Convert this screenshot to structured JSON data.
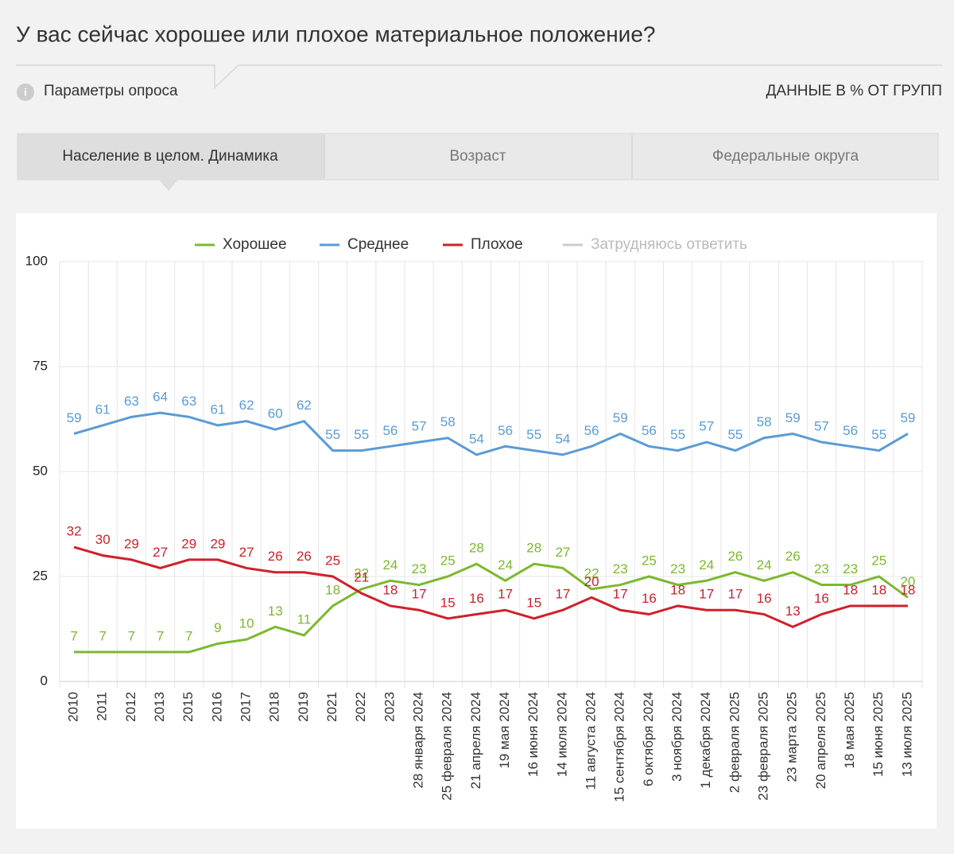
{
  "page": {
    "params": "Параметры опроса",
    "units_note": "ДАННЫЕ В % ОТ ГРУПП",
    "tabs": [
      "Население в целом. Динамика",
      "Возраст",
      "Федеральные округа"
    ]
  },
  "chart_data": {
    "type": "line",
    "title": "У вас сейчас хорошее или плохое материальное положение?",
    "categories": [
      "2010",
      "2011",
      "2012",
      "2013",
      "2015",
      "2016",
      "2017",
      "2018",
      "2019",
      "2021",
      "2022",
      "2023",
      "28 января 2024",
      "25 февраля 2024",
      "21 апреля 2024",
      "19 мая 2024",
      "16 июня 2024",
      "14 июля 2024",
      "11 августа 2024",
      "15 сентября 2024",
      "6 октября 2024",
      "3 ноября 2024",
      "1 декабря 2024",
      "2 февраля 2025",
      "23 февраля 2025",
      "23 марта 2025",
      "20 апреля 2025",
      "18 мая 2025",
      "15 июня 2025",
      "13 июля 2025"
    ],
    "series": [
      {
        "name": "Хорошее",
        "color": "#7cb82f",
        "values": [
          7,
          7,
          7,
          7,
          7,
          9,
          10,
          13,
          11,
          18,
          22,
          24,
          23,
          25,
          28,
          24,
          28,
          27,
          22,
          23,
          25,
          23,
          24,
          26,
          24,
          26,
          23,
          23,
          25,
          20
        ]
      },
      {
        "name": "Среднее",
        "color": "#5b9bd5",
        "values": [
          59,
          61,
          63,
          64,
          63,
          61,
          62,
          60,
          62,
          55,
          55,
          56,
          57,
          58,
          54,
          56,
          55,
          54,
          56,
          59,
          56,
          55,
          57,
          55,
          58,
          59,
          57,
          56,
          55,
          59
        ]
      },
      {
        "name": "Плохое",
        "color": "#d0202a",
        "values": [
          32,
          30,
          29,
          27,
          29,
          29,
          27,
          26,
          26,
          25,
          21,
          18,
          17,
          15,
          16,
          17,
          15,
          17,
          20,
          17,
          16,
          18,
          17,
          17,
          16,
          13,
          16,
          18,
          18,
          18
        ]
      },
      {
        "name": "Затрудняюсь ответить",
        "color": "#cccccc",
        "hidden": true,
        "values": [
          null,
          null,
          null,
          null,
          null,
          null,
          null,
          null,
          null,
          null,
          null,
          null,
          null,
          null,
          null,
          null,
          null,
          null,
          null,
          null,
          null,
          null,
          null,
          null,
          null,
          null,
          null,
          null,
          null,
          null
        ]
      }
    ],
    "ylim": [
      0,
      100
    ],
    "yticks": [
      0,
      25,
      50,
      75,
      100
    ],
    "grid": true,
    "legend": "top"
  }
}
